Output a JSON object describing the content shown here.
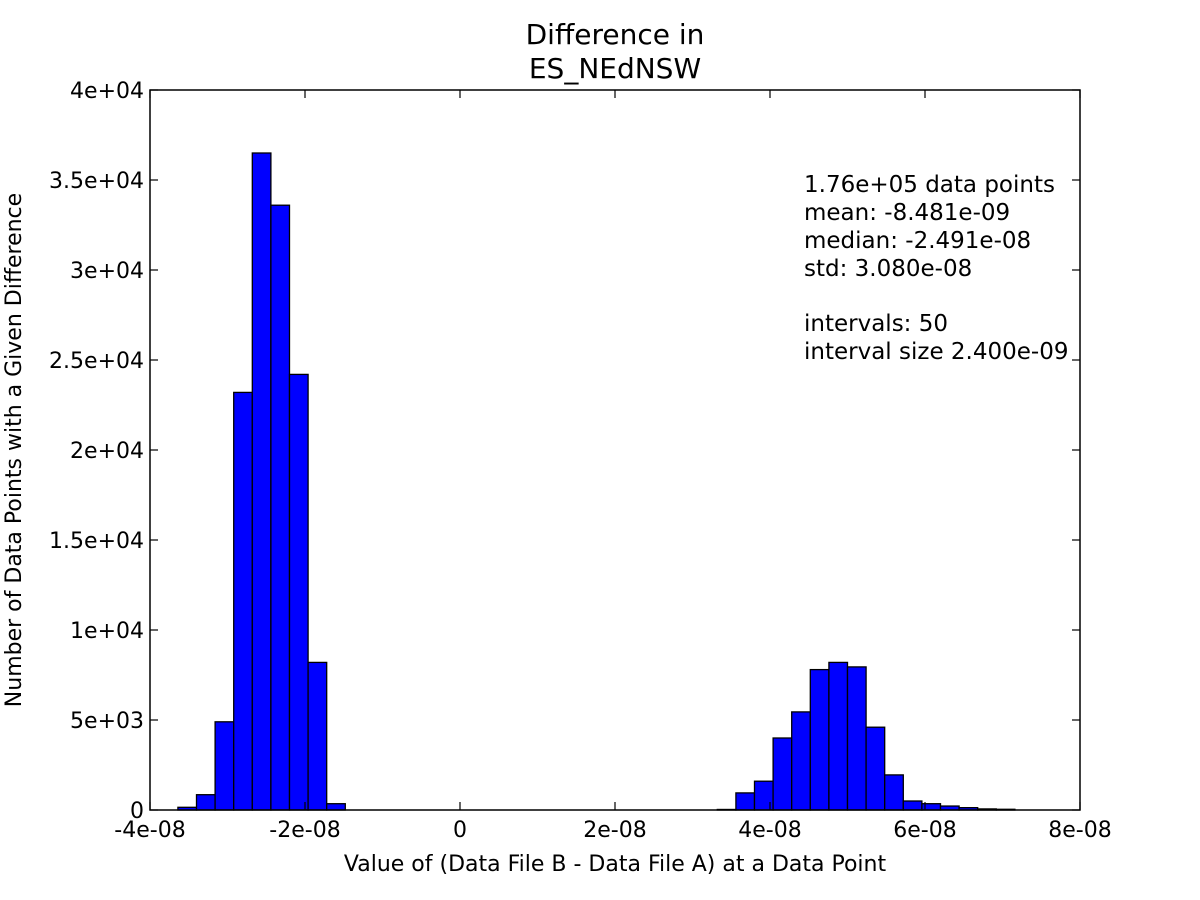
{
  "chart_data": {
    "type": "bar",
    "title_lines": [
      "Difference in",
      "ES_NEdNSW"
    ],
    "xlabel": "Value of (Data File B - Data File A) at a Data Point",
    "ylabel": "Number of Data Points with a Given Difference",
    "xlim": [
      -4e-08,
      8e-08
    ],
    "ylim": [
      0,
      40000
    ],
    "xticks": [
      {
        "value": -4e-08,
        "label": "-4e-08"
      },
      {
        "value": -2e-08,
        "label": "-2e-08"
      },
      {
        "value": 0,
        "label": "0"
      },
      {
        "value": 2e-08,
        "label": "2e-08"
      },
      {
        "value": 4e-08,
        "label": "4e-08"
      },
      {
        "value": 6e-08,
        "label": "6e-08"
      },
      {
        "value": 8e-08,
        "label": "8e-08"
      }
    ],
    "yticks": [
      {
        "value": 0,
        "label": "0"
      },
      {
        "value": 5000,
        "label": "5e+03"
      },
      {
        "value": 10000,
        "label": "1e+04"
      },
      {
        "value": 15000,
        "label": "1.5e+04"
      },
      {
        "value": 20000,
        "label": "2e+04"
      },
      {
        "value": 25000,
        "label": "2.5e+04"
      },
      {
        "value": 30000,
        "label": "3e+04"
      },
      {
        "value": 35000,
        "label": "3.5e+04"
      },
      {
        "value": 40000,
        "label": "4e+04"
      }
    ],
    "bin_start": -3.64e-08,
    "bin_width": 2.4e-09,
    "values": [
      150,
      850,
      4900,
      23200,
      36500,
      33600,
      24200,
      8200,
      350,
      0,
      0,
      0,
      0,
      0,
      0,
      0,
      0,
      0,
      0,
      0,
      0,
      0,
      0,
      0,
      0,
      0,
      0,
      0,
      0,
      30,
      950,
      1600,
      4000,
      5450,
      7800,
      8200,
      7950,
      4600,
      1950,
      500,
      350,
      220,
      130,
      60,
      40,
      0,
      0,
      0,
      0,
      0
    ],
    "bar_color": "#0000ff",
    "edge_color": "#000000",
    "grid": false,
    "annotations": [
      "1.76e+05 data points",
      "mean: -8.481e-09",
      "median: -2.491e-08",
      "std: 3.080e-08",
      "",
      "intervals: 50",
      "interval size 2.400e-09"
    ]
  }
}
